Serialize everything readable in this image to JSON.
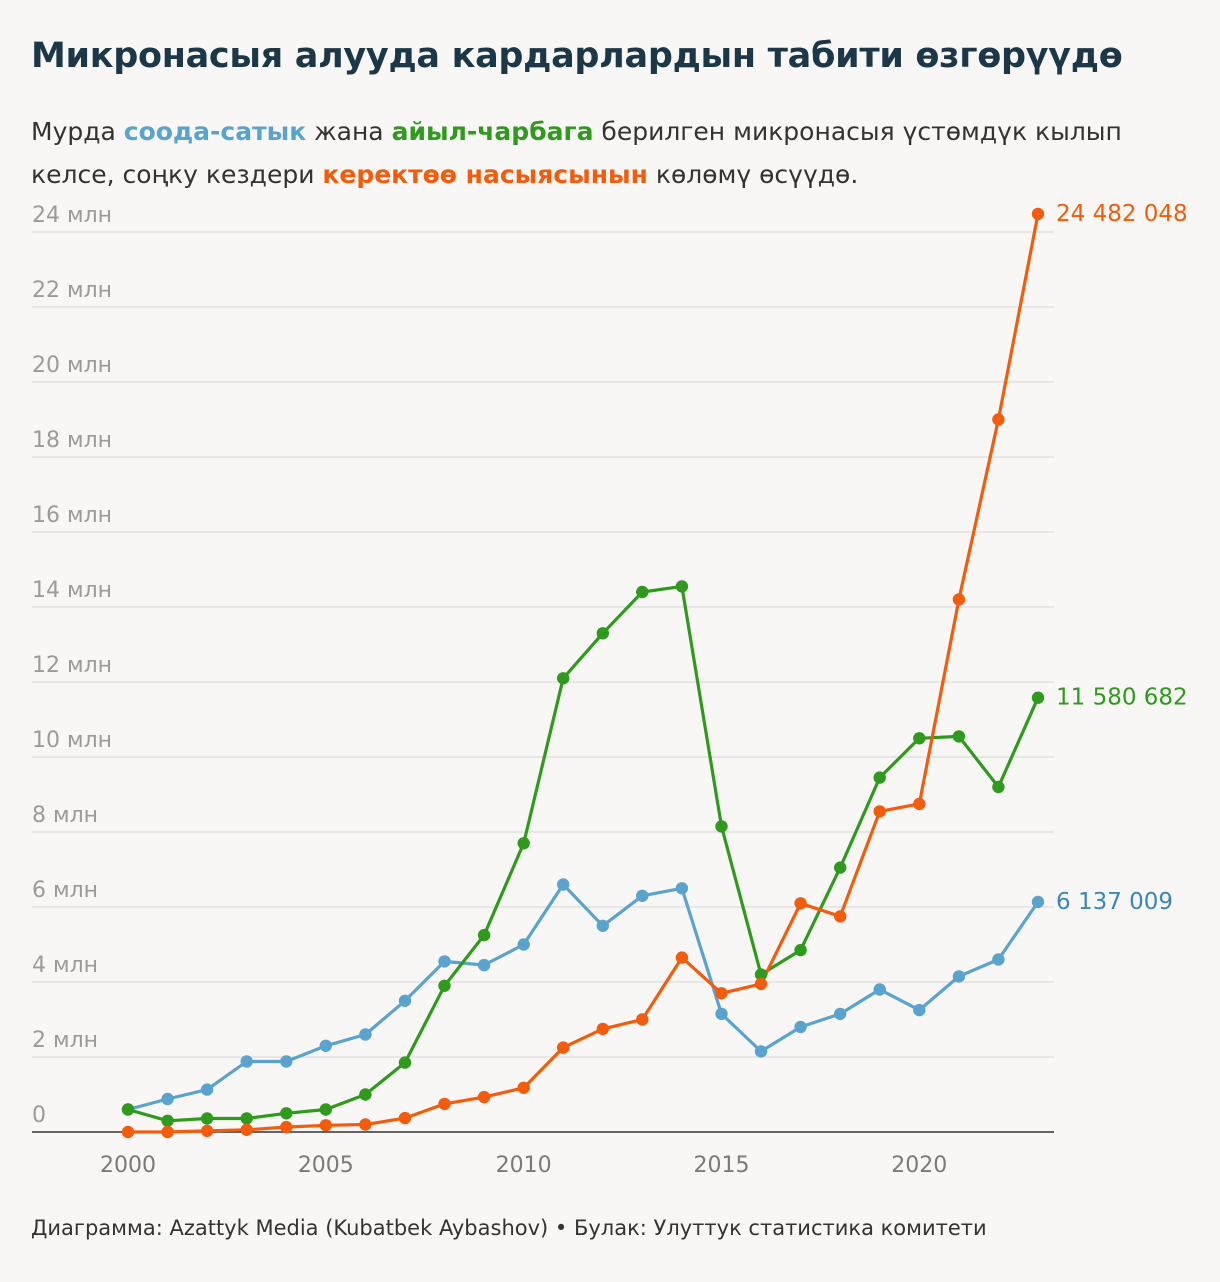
{
  "title": "Микронасыя алууда кардарлардын табити өзгөрүүдө",
  "subtitle": {
    "part1": "Мурда ",
    "trade": "соода-сатык",
    "part2": " жана ",
    "agri": "айыл-чарбага",
    "part3": " берилген микронасыя үстөмдүк кылып келсе, соңку кездери ",
    "consumer": "керектөө насыясынын",
    "part4": " көлөмү өсүүдө."
  },
  "footer": "Диаграмма: Azattyk Media (Kubatbek Aybashov) • Булак: Улуттук статистика комитети",
  "colors": {
    "trade": "#5ba3cf",
    "agri": "#2f9a1d",
    "consumer": "#f35b0d",
    "trade_label": "#3b87ba",
    "grid": "#dddddd",
    "axis": "#333333"
  },
  "chart_data": {
    "type": "line",
    "x": [
      2000,
      2001,
      2002,
      2003,
      2004,
      2005,
      2006,
      2007,
      2008,
      2009,
      2010,
      2011,
      2012,
      2013,
      2014,
      2015,
      2016,
      2017,
      2018,
      2019,
      2020,
      2021,
      2022,
      2023
    ],
    "xticks": [
      2000,
      2005,
      2010,
      2015,
      2020
    ],
    "xlim": [
      1999,
      2023.4
    ],
    "ylim": [
      0,
      24000000
    ],
    "yticks": [
      {
        "value": 0,
        "label": "0"
      },
      {
        "value": 2000000,
        "label": "2 млн"
      },
      {
        "value": 4000000,
        "label": "4 млн"
      },
      {
        "value": 6000000,
        "label": "6 млн"
      },
      {
        "value": 8000000,
        "label": "8 млн"
      },
      {
        "value": 10000000,
        "label": "10 млн"
      },
      {
        "value": 12000000,
        "label": "12 млн"
      },
      {
        "value": 14000000,
        "label": "14 млн"
      },
      {
        "value": 16000000,
        "label": "16 млн"
      },
      {
        "value": 18000000,
        "label": "18 млн"
      },
      {
        "value": 20000000,
        "label": "20 млн"
      },
      {
        "value": 22000000,
        "label": "22 млн"
      },
      {
        "value": 24000000,
        "label": "24 млн"
      }
    ],
    "grid": true,
    "series": [
      {
        "key": "trade",
        "values": [
          600000,
          880000,
          1130000,
          1880000,
          1880000,
          2300000,
          2600000,
          3500000,
          4550000,
          4450000,
          5000000,
          6600000,
          5500000,
          6300000,
          6500000,
          3150000,
          2150000,
          2800000,
          3150000,
          3800000,
          3250000,
          4150000,
          4600000,
          6137009
        ],
        "end_label": "6 137 009"
      },
      {
        "key": "agri",
        "values": [
          600000,
          300000,
          360000,
          360000,
          500000,
          600000,
          1000000,
          1850000,
          3900000,
          5250000,
          7700000,
          12100000,
          13300000,
          14400000,
          14550000,
          8150000,
          4200000,
          4850000,
          7050000,
          9450000,
          10500000,
          10550000,
          9200000,
          11580682
        ],
        "end_label": "11 580 682"
      },
      {
        "key": "consumer",
        "values": [
          0,
          0,
          30000,
          60000,
          130000,
          180000,
          200000,
          370000,
          750000,
          930000,
          1180000,
          2250000,
          2750000,
          3000000,
          4650000,
          3700000,
          3950000,
          6100000,
          5750000,
          8550000,
          8750000,
          14200000,
          19000000,
          24482048
        ],
        "end_label": "24 482 048"
      }
    ]
  }
}
